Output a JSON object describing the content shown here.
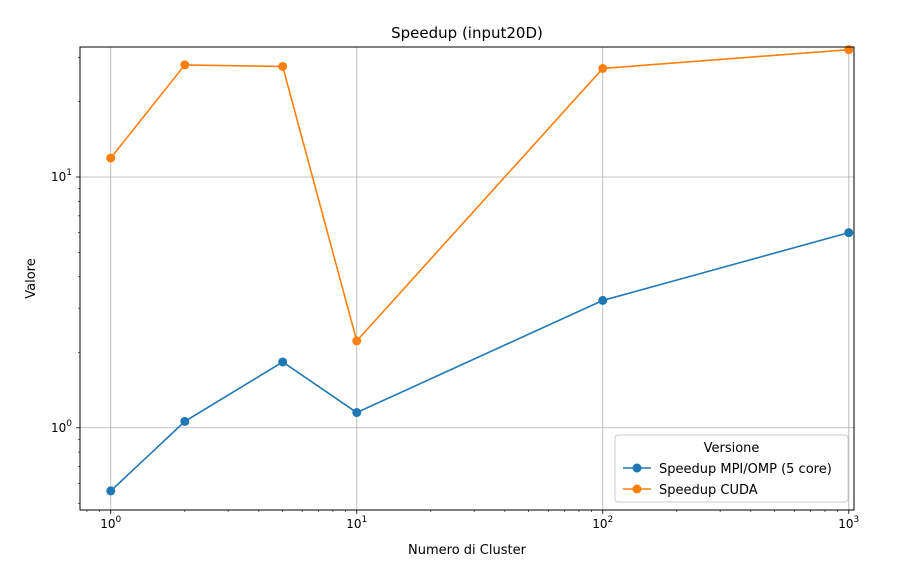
{
  "chart_data": {
    "type": "line",
    "title": "Speedup (input20D)",
    "xlabel": "Numero di Cluster",
    "ylabel": "Valore",
    "xscale": "log",
    "yscale": "log",
    "xlim": [
      0.75,
      1050
    ],
    "ylim": [
      0.47,
      33
    ],
    "grid": true,
    "x": [
      1,
      2,
      5,
      10,
      100,
      1000
    ],
    "x_ticks": [
      {
        "base": "10",
        "exp": "0",
        "value": 1
      },
      {
        "base": "10",
        "exp": "1",
        "value": 10
      },
      {
        "base": "10",
        "exp": "2",
        "value": 100
      },
      {
        "base": "10",
        "exp": "3",
        "value": 1000
      }
    ],
    "y_ticks": [
      {
        "base": "10",
        "exp": "0",
        "value": 1
      },
      {
        "base": "10",
        "exp": "1",
        "value": 10
      }
    ],
    "series": [
      {
        "name": "Speedup MPI/OMP (5 core)",
        "color": "#1f77b4",
        "values": [
          0.56,
          1.06,
          1.83,
          1.15,
          3.22,
          6.0
        ]
      },
      {
        "name": "Speedup CUDA",
        "color": "#ff7f0e",
        "values": [
          11.9,
          28.0,
          27.6,
          2.22,
          27.1,
          32.2
        ]
      }
    ],
    "legend": {
      "title": "Versione",
      "position": "lower-right"
    }
  }
}
